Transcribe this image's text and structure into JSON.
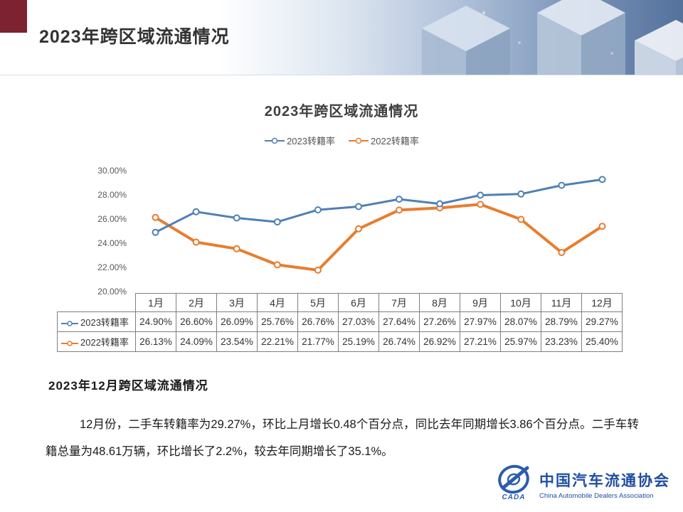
{
  "header": {
    "title": "2023年跨区域流通情况"
  },
  "chart_data": {
    "type": "line",
    "title": "2023年跨区域流通情况",
    "categories": [
      "1月",
      "2月",
      "3月",
      "4月",
      "5月",
      "6月",
      "7月",
      "8月",
      "9月",
      "10月",
      "11月",
      "12月"
    ],
    "series": [
      {
        "name": "2023转籍率",
        "color": "#4e80b4",
        "values": [
          24.9,
          26.6,
          26.09,
          25.76,
          26.76,
          27.03,
          27.64,
          27.26,
          27.97,
          28.07,
          28.79,
          29.27
        ]
      },
      {
        "name": "2022转籍率",
        "color": "#e87d2e",
        "values": [
          26.13,
          24.09,
          23.54,
          22.21,
          21.77,
          25.19,
          26.74,
          26.92,
          27.21,
          25.97,
          23.23,
          25.4
        ]
      }
    ],
    "y_ticks": [
      "30.00%",
      "28.00%",
      "26.00%",
      "24.00%",
      "22.00%",
      "20.00%"
    ],
    "ylim": [
      20,
      30
    ],
    "value_suffix": "%",
    "grid": false,
    "legend_position": "top"
  },
  "section": {
    "heading": "2023年12月跨区域流通情况",
    "paragraph": "12月份，二手车转籍率为29.27%，环比上月增长0.48个百分点，同比去年同期增长3.86个百分点。二手车转籍总量为48.61万辆，环比增长了2.2%，较去年同期增长了35.1%。"
  },
  "logo": {
    "cn": "中国汽车流通协会",
    "en": "China Automobile Dealers Association",
    "acronym": "CADA"
  }
}
